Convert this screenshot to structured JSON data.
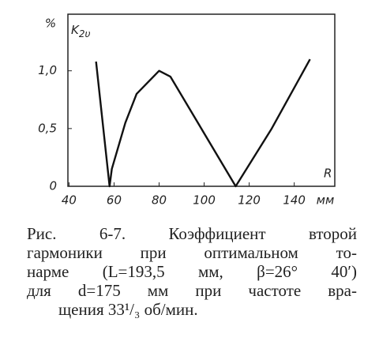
{
  "chart_data": {
    "type": "line",
    "y_unit": "%",
    "ylabel": {
      "main": "K",
      "sub": "2υ"
    },
    "xlabel": "R",
    "x_unit": "мм",
    "x": [
      52,
      58,
      59,
      65,
      70,
      80,
      85,
      114,
      130,
      147
    ],
    "series": [
      {
        "color": "#111",
        "values": [
          1.08,
          0,
          0.15,
          0.55,
          0.8,
          1.0,
          0.95,
          0,
          0.5,
          1.1
        ]
      }
    ],
    "xlim": [
      39.5,
      158
    ],
    "xticks": [
      40,
      60,
      80,
      100,
      120,
      140
    ],
    "ylim": [
      0,
      1.49
    ],
    "yticks": [
      {
        "value": 0,
        "label": "0"
      },
      {
        "value": 0.5,
        "label": "0,5"
      },
      {
        "value": 1.0,
        "label": "1,0"
      }
    ],
    "grid": false,
    "caption": [
      "Рис. 6-7. Коэффициент второй",
      "гармоники при оптимальном то-",
      "нарме (L=193,5 мм, β=26° 40′)",
      "для d=175 мм при частоте вра-",
      "щения 33¹/₃ об/мин."
    ]
  }
}
